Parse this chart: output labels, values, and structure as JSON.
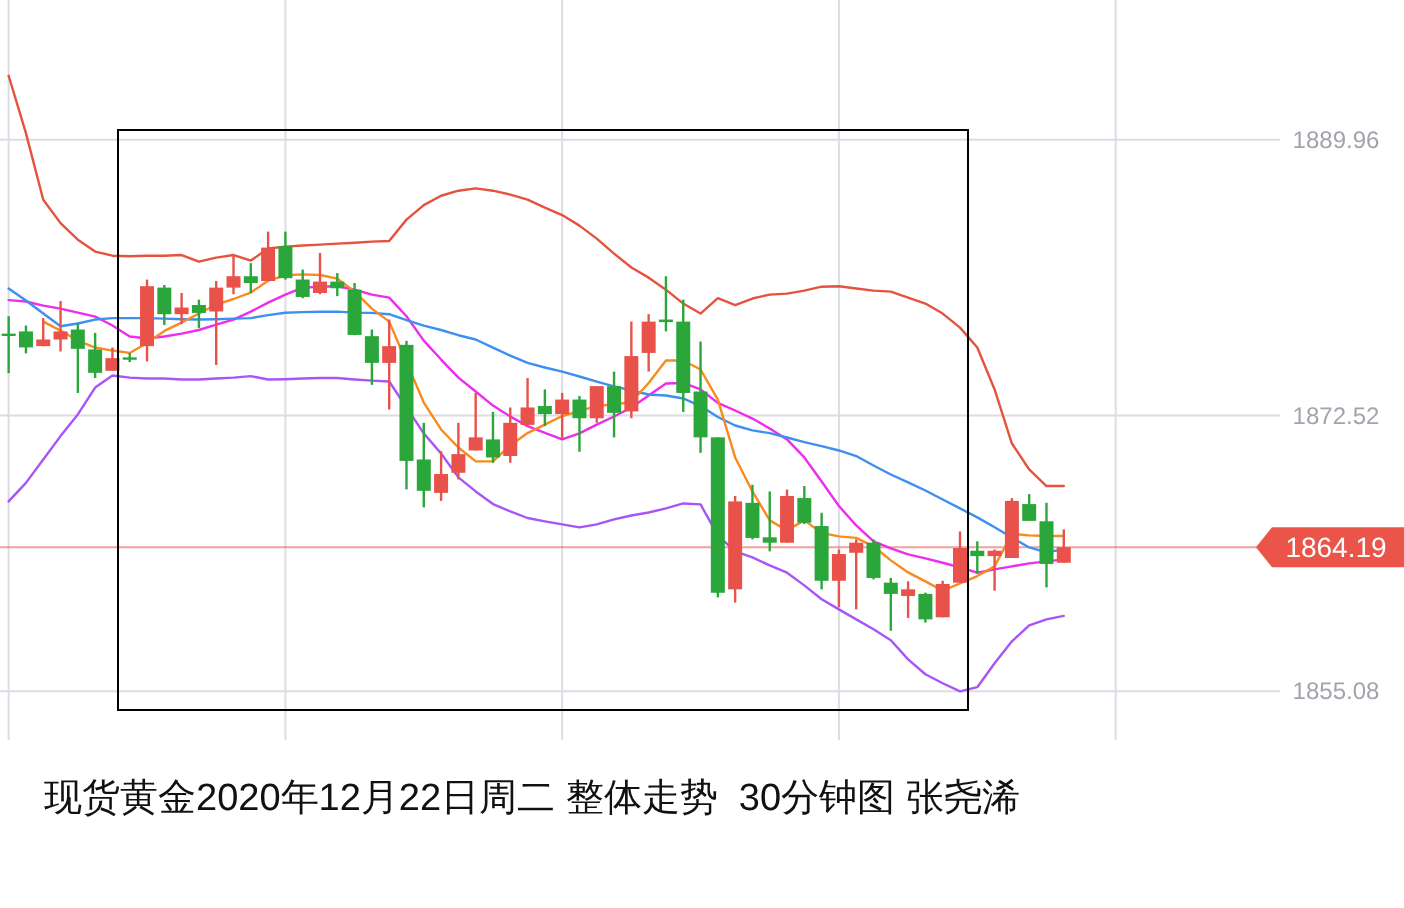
{
  "chart_data": {
    "type": "candlestick",
    "title": "现货黄金2020年12月22日周二 整体走势  30分钟图 张尧浠",
    "categories": [
      null,
      null,
      null,
      null,
      null,
      null,
      null,
      null,
      null,
      null,
      null,
      null,
      null,
      null,
      null,
      null,
      null,
      null,
      null,
      null,
      null,
      null,
      null,
      null,
      null,
      null,
      null,
      null,
      null,
      null,
      null,
      null,
      null,
      null,
      null,
      null,
      null,
      null,
      null,
      null,
      null,
      null,
      null,
      null,
      null,
      null,
      null,
      null,
      null,
      null,
      null,
      null,
      null,
      null,
      null,
      null,
      null,
      null,
      null,
      null,
      null,
      null
    ],
    "ohlc": [
      [
        1877.7,
        1878.8,
        1875.2,
        1877.6
      ],
      [
        1877.84,
        1878.21,
        1876.45,
        1876.83
      ],
      [
        1876.91,
        1878.68,
        1876.9,
        1877.33
      ],
      [
        1877.33,
        1879.76,
        1876.57,
        1877.84
      ],
      [
        1877.96,
        1878.38,
        1873.95,
        1876.74
      ],
      [
        1876.7,
        1877.75,
        1874.89,
        1875.22
      ],
      [
        1875.35,
        1876.82,
        1875.35,
        1876.15
      ],
      [
        1876.2,
        1876.48,
        1875.9,
        1876.1
      ],
      [
        1876.91,
        1881.12,
        1875.94,
        1880.7
      ],
      [
        1880.61,
        1880.78,
        1878.25,
        1878.93
      ],
      [
        1878.93,
        1880.27,
        1878.3,
        1879.35
      ],
      [
        1879.51,
        1879.85,
        1878.05,
        1879.01
      ],
      [
        1879.1,
        1881.03,
        1875.72,
        1880.61
      ],
      [
        1880.61,
        1882.72,
        1880.19,
        1881.33
      ],
      [
        1881.33,
        1882.16,
        1880.27,
        1880.9
      ],
      [
        1881.03,
        1884.15,
        1881.03,
        1883.14
      ],
      [
        1883.23,
        1884.15,
        1881.12,
        1881.21
      ],
      [
        1881.12,
        1881.75,
        1879.94,
        1880.02
      ],
      [
        1880.27,
        1882.8,
        1880.19,
        1880.99
      ],
      [
        1880.99,
        1881.53,
        1880.07,
        1880.57
      ],
      [
        1880.48,
        1880.9,
        1877.6,
        1877.62
      ],
      [
        1877.54,
        1877.96,
        1874.46,
        1875.85
      ],
      [
        1875.85,
        1878.59,
        1872.9,
        1876.91
      ],
      [
        1876.99,
        1877.24,
        1867.85,
        1869.65
      ],
      [
        1869.74,
        1872.06,
        1866.71,
        1867.76
      ],
      [
        1867.63,
        1870.27,
        1867.12,
        1868.82
      ],
      [
        1868.9,
        1872.06,
        1868.48,
        1870.08
      ],
      [
        1870.31,
        1873.95,
        1870.31,
        1871.14
      ],
      [
        1871.01,
        1872.75,
        1869.53,
        1869.87
      ],
      [
        1869.96,
        1873.03,
        1869.53,
        1872.06
      ],
      [
        1871.93,
        1874.89,
        1871.85,
        1873.03
      ],
      [
        1873.12,
        1874.17,
        1871.85,
        1872.61
      ],
      [
        1872.61,
        1873.95,
        1871.01,
        1873.53
      ],
      [
        1873.53,
        1873.75,
        1870.23,
        1872.35
      ],
      [
        1872.35,
        1874.38,
        1872.06,
        1874.38
      ],
      [
        1874.38,
        1875.3,
        1871.14,
        1872.69
      ],
      [
        1872.78,
        1878.46,
        1872.35,
        1876.28
      ],
      [
        1876.48,
        1878.93,
        1875.3,
        1878.46
      ],
      [
        1878.59,
        1881.33,
        1877.84,
        1878.43
      ],
      [
        1878.46,
        1879.85,
        1872.75,
        1873.95
      ],
      [
        1874.04,
        1877.2,
        1870.16,
        1871.14
      ],
      [
        1871.14,
        1871.14,
        1861.02,
        1861.31
      ],
      [
        1861.53,
        1867.43,
        1860.69,
        1867.09
      ],
      [
        1867.0,
        1868.14,
        1864.69,
        1864.78
      ],
      [
        1864.82,
        1867.72,
        1863.93,
        1864.48
      ],
      [
        1864.48,
        1867.84,
        1864.48,
        1867.43
      ],
      [
        1867.3,
        1868.06,
        1865.66,
        1865.74
      ],
      [
        1865.53,
        1866.37,
        1861.53,
        1862.07
      ],
      [
        1862.07,
        1864.05,
        1860.39,
        1863.76
      ],
      [
        1863.84,
        1864.69,
        1860.26,
        1864.48
      ],
      [
        1864.48,
        1864.69,
        1862.16,
        1862.25
      ],
      [
        1861.95,
        1862.25,
        1858.91,
        1861.24
      ],
      [
        1861.11,
        1862.03,
        1859.72,
        1861.53
      ],
      [
        1861.24,
        1861.32,
        1859.42,
        1859.63
      ],
      [
        1859.76,
        1862.07,
        1859.76,
        1861.87
      ],
      [
        1861.95,
        1865.19,
        1861.95,
        1864.14
      ],
      [
        1863.97,
        1864.56,
        1862.5,
        1863.63
      ],
      [
        1863.63,
        1864.05,
        1861.44,
        1863.97
      ],
      [
        1863.51,
        1867.3,
        1863.51,
        1867.12
      ],
      [
        1866.92,
        1867.55,
        1865.86,
        1865.86
      ],
      [
        1865.83,
        1867.0,
        1861.65,
        1863.13
      ],
      [
        1863.21,
        1865.32,
        1863.21,
        1864.19
      ]
    ],
    "colors": [
      "#2aa63a",
      "#2aa63a",
      "#e8524a",
      "#e8524a",
      "#2aa63a",
      "#2aa63a",
      "#e8524a",
      "#2aa63a",
      "#e8524a",
      "#2aa63a",
      "#e8524a",
      "#2aa63a",
      "#e8524a",
      "#e8524a",
      "#2aa63a",
      "#e8524a",
      "#2aa63a",
      "#2aa63a",
      "#e8524a",
      "#2aa63a",
      "#2aa63a",
      "#2aa63a",
      "#e8524a",
      "#2aa63a",
      "#2aa63a",
      "#e8524a",
      "#e8524a",
      "#e8524a",
      "#2aa63a",
      "#e8524a",
      "#e8524a",
      "#2aa63a",
      "#e8524a",
      "#2aa63a",
      "#e8524a",
      "#2aa63a",
      "#e8524a",
      "#e8524a",
      "#2aa63a",
      "#2aa63a",
      "#2aa63a",
      "#2aa63a",
      "#e8524a",
      "#2aa63a",
      "#2aa63a",
      "#e8524a",
      "#2aa63a",
      "#2aa63a",
      "#e8524a",
      "#e8524a",
      "#2aa63a",
      "#2aa63a",
      "#e8524a",
      "#2aa63a",
      "#e8524a",
      "#e8524a",
      "#2aa63a",
      "#e8524a",
      "#e8524a",
      "#2aa63a",
      "#2aa63a",
      "#e8524a"
    ],
    "series": [
      {
        "type": "line",
        "color": "#e5533f",
        "values": [
          1894.01,
          1890.38,
          1886.17,
          1884.69,
          1883.64,
          1882.89,
          1882.63,
          1882.59,
          1882.63,
          1882.63,
          1882.67,
          1882.25,
          1882.51,
          1882.67,
          1882.32,
          1883.08,
          1883.2,
          1883.27,
          1883.33,
          1883.39,
          1883.45,
          1883.52,
          1883.56,
          1884.91,
          1885.83,
          1886.42,
          1886.74,
          1886.89,
          1886.74,
          1886.49,
          1886.17,
          1885.67,
          1885.2,
          1884.53,
          1883.71,
          1882.76,
          1881.88,
          1881.24,
          1880.48,
          1879.6,
          1878.97,
          1879.94,
          1879.51,
          1879.92,
          1880.17,
          1880.23,
          1880.42,
          1880.67,
          1880.7,
          1880.55,
          1880.42,
          1880.36,
          1879.98,
          1879.6,
          1878.97,
          1878.08,
          1876.82,
          1874.17,
          1870.75,
          1869.11,
          1868.06,
          1868.06
        ]
      },
      {
        "type": "line",
        "color": "#ee2cee",
        "values": [
          1879.82,
          1879.73,
          1879.47,
          1879.28,
          1879.03,
          1878.78,
          1878.21,
          1877.52,
          1877.39,
          1877.52,
          1877.7,
          1877.93,
          1878.27,
          1878.59,
          1879.09,
          1879.66,
          1880.17,
          1880.61,
          1880.67,
          1880.7,
          1880.48,
          1880.17,
          1879.98,
          1878.8,
          1877.26,
          1876.06,
          1874.92,
          1874.04,
          1873.15,
          1872.46,
          1871.85,
          1871.42,
          1871.01,
          1871.39,
          1871.95,
          1872.46,
          1873.03,
          1873.79,
          1874.55,
          1874.58,
          1874.17,
          1873.32,
          1872.84,
          1872.33,
          1871.7,
          1871.01,
          1869.87,
          1868.35,
          1866.8,
          1865.57,
          1864.56,
          1864.12,
          1863.74,
          1863.49,
          1863.21,
          1862.92,
          1862.58,
          1862.79,
          1862.98,
          1863.17,
          1863.3,
          1863.42
        ]
      },
      {
        "type": "line",
        "color": "#a855f7",
        "values": [
          1867.09,
          1868.26,
          1869.74,
          1871.22,
          1872.59,
          1874.29,
          1875.05,
          1874.92,
          1874.86,
          1874.86,
          1874.8,
          1874.8,
          1874.86,
          1874.92,
          1875.01,
          1874.8,
          1874.82,
          1874.86,
          1874.89,
          1874.89,
          1874.8,
          1874.73,
          1874.67,
          null,
          1871.39,
          1870.12,
          1868.61,
          1867.72,
          1866.92,
          1866.46,
          1866.04,
          1865.83,
          1865.64,
          1865.45,
          1865.64,
          1865.95,
          1866.2,
          1866.39,
          1866.65,
          1866.96,
          1866.9,
          1864.94,
          1863.93,
          1863.55,
          1863.04,
          1862.58,
          1861.78,
          1860.9,
          1860.26,
          1859.63,
          1859.0,
          1858.31,
          1857.1,
          1856.16,
          1855.59,
          1855.08,
          1855.34,
          1856.85,
          1858.24,
          1859.25,
          1859.63,
          1859.85
        ]
      },
      {
        "type": "line",
        "color": "#3d8ff0",
        "values": [
          1880.55,
          1879.79,
          1878.97,
          1878.17,
          1878.34,
          1878.59,
          1878.68,
          1878.68,
          1878.68,
          1878.65,
          1878.61,
          1878.59,
          1878.61,
          1878.65,
          1878.68,
          1878.87,
          1879.02,
          1879.06,
          1879.08,
          1879.09,
          1879.03,
          1879.01,
          1878.93,
          1878.55,
          1878.21,
          1877.93,
          1877.6,
          1877.33,
          1876.82,
          1876.31,
          1875.85,
          1875.56,
          1875.3,
          1874.99,
          1874.67,
          1874.36,
          null,
          1873.85,
          1873.79,
          1873.6,
          1873.12,
          1872.43,
          1871.89,
          1871.58,
          1871.41,
          1871.13,
          1870.84,
          1870.59,
          1870.31,
          1869.96,
          1869.36,
          1868.79,
          1868.29,
          1867.78,
          1867.21,
          1866.65,
          1866.08,
          1865.45,
          1864.81,
          1864.18,
          1863.87,
          1864.06
        ]
      },
      {
        "type": "line",
        "color": "#f98b1e",
        "values": [
          null,
          null,
          1878.46,
          1877.89,
          1877.26,
          1876.82,
          1876.63,
          1876.48,
          1877.11,
          1877.87,
          1878.4,
          1878.97,
          1879.54,
          1879.89,
          1880.3,
          1881.05,
          1881.39,
          1881.45,
          1881.41,
          1881.18,
          1880.36,
          1879.28,
          1878.46,
          null,
          1873.34,
          1871.64,
          1870.5,
          1869.62,
          1869.62,
          1870.63,
          1871.41,
          1871.95,
          1872.49,
          1872.8,
          1873.13,
          1873.22,
          1873.38,
          1874.58,
          1876.0,
          1876.0,
          1875.43,
          1873.53,
          1869.87,
          1867.72,
          1865.89,
          1865.26,
          1865.89,
          1865.1,
          1864.88,
          1864.78,
          1864.25,
          1863.36,
          1862.6,
          1862.03,
          1861.44,
          1861.91,
          1862.37,
          1862.98,
          1865.03,
          1864.94,
          1864.9,
          1864.9
        ]
      }
    ],
    "ylim": [
      1852.0,
      1898.8
    ],
    "yticks": [
      1855.08,
      1872.52,
      1889.96
    ],
    "ref_lines": [
      {
        "axis": "y",
        "value": 1864.19,
        "label": "1864.19",
        "color": "#ea5449"
      }
    ],
    "grid": true,
    "tick_labels": "y"
  }
}
